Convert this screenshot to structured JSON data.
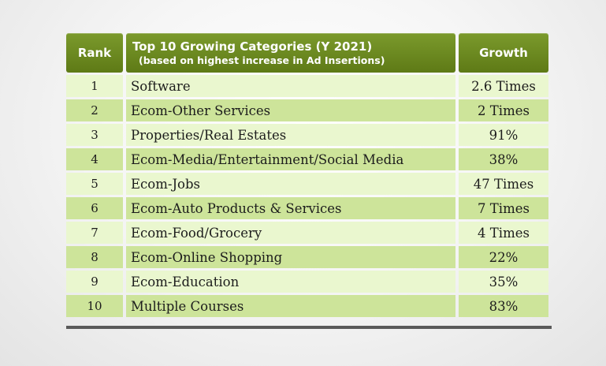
{
  "table": {
    "headers": {
      "rank": "Rank",
      "category_title": "Top 10 Growing Categories (Y 2021)",
      "category_subtitle": "(based on highest increase in Ad Insertions)",
      "growth": "Growth"
    },
    "rows": [
      {
        "rank": "1",
        "category": "Software",
        "growth": "2.6 Times"
      },
      {
        "rank": "2",
        "category": "Ecom-Other Services",
        "growth": "2 Times"
      },
      {
        "rank": "3",
        "category": "Properties/Real Estates",
        "growth": "91%"
      },
      {
        "rank": "4",
        "category": "Ecom-Media/Entertainment/Social Media",
        "growth": "38%"
      },
      {
        "rank": "5",
        "category": "Ecom-Jobs",
        "growth": "47 Times"
      },
      {
        "rank": "6",
        "category": "Ecom-Auto Products & Services",
        "growth": "7 Times"
      },
      {
        "rank": "7",
        "category": "Ecom-Food/Grocery",
        "growth": "4 Times"
      },
      {
        "rank": "8",
        "category": "Ecom-Online Shopping",
        "growth": "22%"
      },
      {
        "rank": "9",
        "category": "Ecom-Education",
        "growth": "35%"
      },
      {
        "rank": "10",
        "category": "Multiple Courses",
        "growth": "83%"
      }
    ]
  },
  "colors": {
    "header_bg": "#6a8a20",
    "row_light": "#eaf7cf",
    "row_dark": "#cde49a",
    "bottom_bar": "#5a5a5a"
  }
}
